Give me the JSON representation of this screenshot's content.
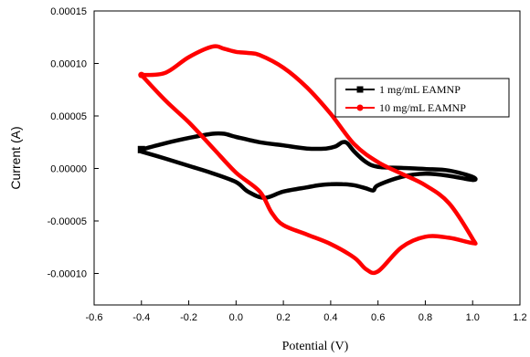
{
  "chart_data": {
    "type": "line",
    "xlabel": "Potential (V)",
    "ylabel": "Current (A)",
    "xlim": [
      -0.6,
      1.2
    ],
    "ylim": [
      -0.00013,
      0.00015
    ],
    "x_ticks": [
      -0.6,
      -0.4,
      -0.2,
      0.0,
      0.2,
      0.4,
      0.6,
      0.8,
      1.0,
      1.2
    ],
    "x_tick_labels": [
      "-0.6",
      "-0.4",
      "-0.2",
      "0.0",
      "0.2",
      "0.4",
      "0.6",
      "0.8",
      "1.0",
      "1.2"
    ],
    "y_ticks": [
      -0.0001,
      -5e-05,
      0.0,
      5e-05,
      0.0001,
      0.00015
    ],
    "y_tick_labels": [
      "-0.00010",
      "-0.00005",
      "0.00000",
      "0.00005",
      "0.00010",
      "0.00015"
    ],
    "legend_position": "top-right",
    "series": [
      {
        "name": "1 mg/mL EAMNP",
        "color": "#000000",
        "marker": "square",
        "x": [
          -0.4,
          -0.3,
          -0.2,
          -0.1,
          -0.05,
          0.0,
          0.1,
          0.2,
          0.3,
          0.38,
          0.42,
          0.45,
          0.47,
          0.5,
          0.55,
          0.6,
          0.7,
          0.8,
          0.9,
          1.0,
          1.0,
          0.9,
          0.8,
          0.7,
          0.6,
          0.58,
          0.55,
          0.5,
          0.45,
          0.4,
          0.35,
          0.3,
          0.2,
          0.12,
          0.05,
          0.0,
          -0.1,
          -0.2,
          -0.3,
          -0.4
        ],
        "y": [
          1.8e-05,
          2.4e-05,
          2.9e-05,
          3.3e-05,
          3.3e-05,
          3e-05,
          2.5e-05,
          2.2e-05,
          1.9e-05,
          1.9e-05,
          2.1e-05,
          2.5e-05,
          2.4e-05,
          1.6e-05,
          6e-06,
          1.5e-06,
          5e-07,
          -5e-07,
          -2e-06,
          -8e-06,
          -1.1e-05,
          -7e-06,
          -5e-06,
          -8e-06,
          -1.6e-05,
          -2.1e-05,
          -1.9e-05,
          -1.6e-05,
          -1.5e-05,
          -1.5e-05,
          -1.6e-05,
          -1.8e-05,
          -2.2e-05,
          -2.8e-05,
          -2.2e-05,
          -1.3e-05,
          -4.5e-06,
          2.5e-06,
          9.5e-06,
          1.6e-05
        ]
      },
      {
        "name": "10 mg/mL EAMNP",
        "color": "#ff0000",
        "marker": "circle",
        "x": [
          -0.4,
          -0.3,
          -0.2,
          -0.1,
          -0.05,
          0.0,
          0.05,
          0.1,
          0.2,
          0.3,
          0.4,
          0.5,
          0.6,
          0.7,
          0.8,
          0.9,
          1.0,
          1.0,
          0.9,
          0.8,
          0.7,
          0.6,
          0.55,
          0.5,
          0.4,
          0.3,
          0.2,
          0.15,
          0.1,
          0.0,
          -0.1,
          -0.2,
          -0.3,
          -0.4
        ],
        "y": [
          8.9e-05,
          9.1e-05,
          0.000106,
          0.000116,
          0.000114,
          0.000111,
          0.00011,
          0.000108,
          9.6e-05,
          7.7e-05,
          5.2e-05,
          2.3e-05,
          6e-06,
          -5e-06,
          -1.6e-05,
          -3.3e-05,
          -6.7e-05,
          -7.1e-05,
          -6.6e-05,
          -6.5e-05,
          -7.5e-05,
          -9.8e-05,
          -9.6e-05,
          -8.5e-05,
          -7.2e-05,
          -6.3e-05,
          -5.4e-05,
          -4.2e-05,
          -2.2e-05,
          -4e-06,
          2e-05,
          4.4e-05,
          6.5e-05,
          8.9e-05
        ]
      }
    ]
  }
}
